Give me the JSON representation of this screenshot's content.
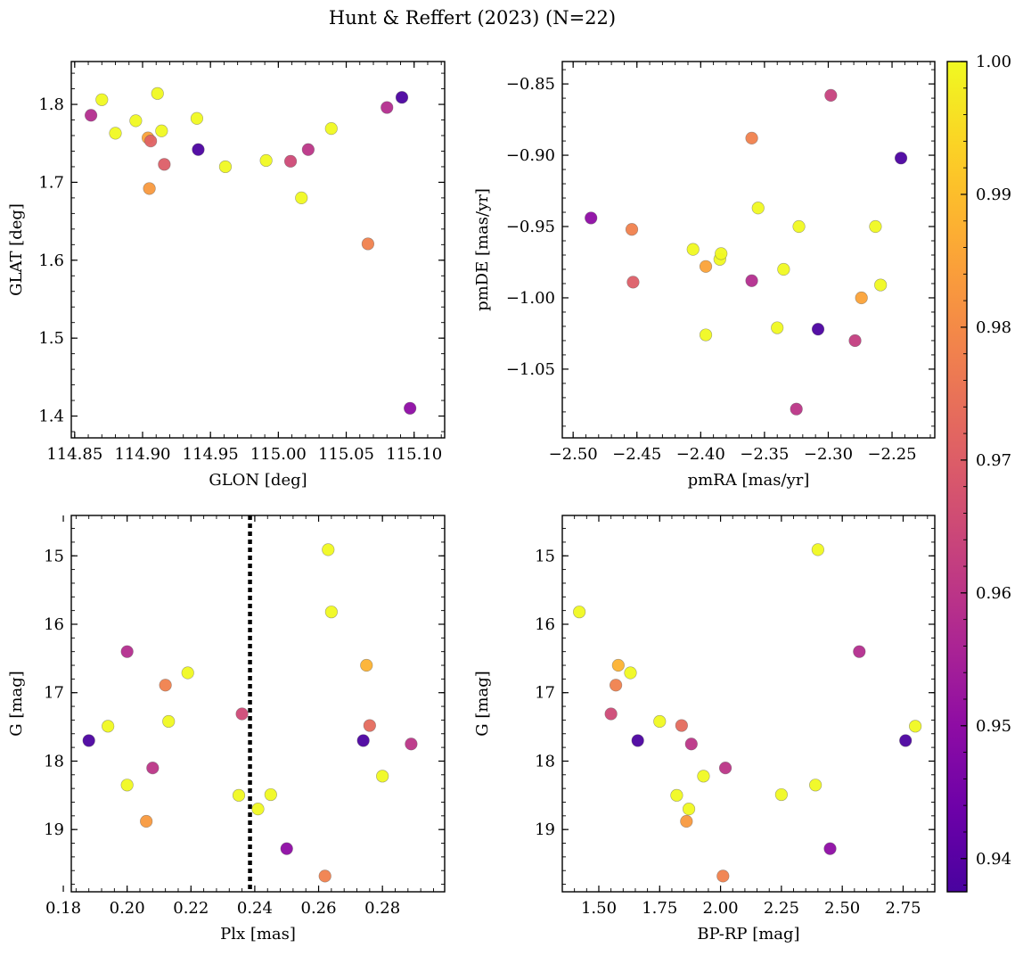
{
  "figure": {
    "title": "Hunt & Reffert (2023) (N=22)"
  },
  "colorbar": {
    "colormap": "plasma",
    "vmin": 0.9375,
    "vmax": 1.0,
    "ticks": [
      0.94,
      0.95,
      0.96,
      0.97,
      0.98,
      0.99,
      1.0
    ],
    "tick_labels": [
      "0.94",
      "0.95",
      "0.96",
      "0.97",
      "0.98",
      "0.99",
      "1.00"
    ]
  },
  "chart_data": [
    {
      "type": "scatter",
      "id": "glon-glat",
      "title": "",
      "xlabel": "GLON [deg]",
      "ylabel": "GLAT [deg]",
      "xlim": [
        114.8475,
        115.1225
      ],
      "ylim": [
        1.372,
        1.855
      ],
      "y_inverted": false,
      "xticks": [
        114.85,
        114.9,
        114.95,
        115.0,
        115.05,
        115.1
      ],
      "xtick_labels": [
        "114.85",
        "114.90",
        "114.95",
        "115.00",
        "115.05",
        "115.10"
      ],
      "yticks": [
        1.4,
        1.5,
        1.6,
        1.7,
        1.8
      ],
      "ytick_labels": [
        "1.4",
        "1.5",
        "1.6",
        "1.7",
        "1.8"
      ],
      "vline": null,
      "points": [
        {
          "x": 114.862,
          "y": 1.786,
          "prob": 0.958
        },
        {
          "x": 114.87,
          "y": 1.806,
          "prob": 1.0
        },
        {
          "x": 114.88,
          "y": 1.763,
          "prob": 1.0
        },
        {
          "x": 114.895,
          "y": 1.779,
          "prob": 1.0
        },
        {
          "x": 114.904,
          "y": 1.757,
          "prob": 0.985
        },
        {
          "x": 114.906,
          "y": 1.753,
          "prob": 0.971
        },
        {
          "x": 114.905,
          "y": 1.692,
          "prob": 0.983
        },
        {
          "x": 114.911,
          "y": 1.814,
          "prob": 1.0
        },
        {
          "x": 114.914,
          "y": 1.766,
          "prob": 1.0
        },
        {
          "x": 114.916,
          "y": 1.723,
          "prob": 0.97
        },
        {
          "x": 114.94,
          "y": 1.782,
          "prob": 1.0
        },
        {
          "x": 114.941,
          "y": 1.742,
          "prob": 0.938
        },
        {
          "x": 114.961,
          "y": 1.72,
          "prob": 1.0
        },
        {
          "x": 114.991,
          "y": 1.728,
          "prob": 1.0
        },
        {
          "x": 115.009,
          "y": 1.727,
          "prob": 0.965
        },
        {
          "x": 115.017,
          "y": 1.68,
          "prob": 1.0
        },
        {
          "x": 115.022,
          "y": 1.742,
          "prob": 0.96
        },
        {
          "x": 115.039,
          "y": 1.769,
          "prob": 1.0
        },
        {
          "x": 115.066,
          "y": 1.621,
          "prob": 0.978
        },
        {
          "x": 115.08,
          "y": 1.796,
          "prob": 0.958
        },
        {
          "x": 115.091,
          "y": 1.809,
          "prob": 0.938
        },
        {
          "x": 115.097,
          "y": 1.41,
          "prob": 0.95
        }
      ]
    },
    {
      "type": "scatter",
      "id": "pmra-pmde",
      "title": "",
      "xlabel": "pmRA [mas/yr]",
      "ylabel": "pmDE [mas/yr]",
      "xlim": [
        -2.5085,
        -2.2165
      ],
      "ylim": [
        -1.0982,
        -0.8343
      ],
      "y_inverted": false,
      "xticks": [
        -2.5,
        -2.45,
        -2.4,
        -2.35,
        -2.3,
        -2.25
      ],
      "xtick_labels": [
        "−2.50",
        "−2.45",
        "−2.40",
        "−2.35",
        "−2.30",
        "−2.25"
      ],
      "yticks": [
        -1.05,
        -1.0,
        -0.95,
        -0.9,
        -0.85
      ],
      "ytick_labels": [
        "−1.05",
        "−1.00",
        "−0.95",
        "−0.90",
        "−0.85"
      ],
      "vline": null,
      "points": [
        {
          "x": -2.486,
          "y": -0.944,
          "prob": 0.95
        },
        {
          "x": -2.454,
          "y": -0.952,
          "prob": 0.978
        },
        {
          "x": -2.453,
          "y": -0.989,
          "prob": 0.97
        },
        {
          "x": -2.406,
          "y": -0.966,
          "prob": 1.0
        },
        {
          "x": -2.396,
          "y": -0.978,
          "prob": 0.985
        },
        {
          "x": -2.396,
          "y": -1.026,
          "prob": 1.0
        },
        {
          "x": -2.385,
          "y": -0.973,
          "prob": 1.0
        },
        {
          "x": -2.384,
          "y": -0.969,
          "prob": 1.0
        },
        {
          "x": -2.36,
          "y": -0.888,
          "prob": 0.978
        },
        {
          "x": -2.36,
          "y": -0.988,
          "prob": 0.958
        },
        {
          "x": -2.355,
          "y": -0.937,
          "prob": 1.0
        },
        {
          "x": -2.34,
          "y": -1.021,
          "prob": 1.0
        },
        {
          "x": -2.335,
          "y": -0.98,
          "prob": 1.0
        },
        {
          "x": -2.325,
          "y": -1.078,
          "prob": 0.96
        },
        {
          "x": -2.323,
          "y": -0.95,
          "prob": 1.0
        },
        {
          "x": -2.308,
          "y": -1.022,
          "prob": 0.938
        },
        {
          "x": -2.298,
          "y": -0.858,
          "prob": 0.963
        },
        {
          "x": -2.279,
          "y": -1.03,
          "prob": 0.962
        },
        {
          "x": -2.274,
          "y": -1.0,
          "prob": 0.985
        },
        {
          "x": -2.263,
          "y": -0.95,
          "prob": 1.0
        },
        {
          "x": -2.259,
          "y": -0.991,
          "prob": 1.0
        },
        {
          "x": -2.243,
          "y": -0.902,
          "prob": 0.938
        }
      ]
    },
    {
      "type": "scatter",
      "id": "plx-g",
      "title": "",
      "xlabel": "Plx [mas]",
      "ylabel": "G [mag]",
      "xlim": [
        0.1825,
        0.2995
      ],
      "ylim": [
        19.91,
        14.41
      ],
      "y_inverted": true,
      "xticks": [
        0.18,
        0.2,
        0.22,
        0.24,
        0.26,
        0.28
      ],
      "xtick_labels": [
        "0.18",
        "0.20",
        "0.22",
        "0.24",
        "0.26",
        "0.28"
      ],
      "yticks": [
        15,
        16,
        17,
        18,
        19
      ],
      "ytick_labels": [
        "15",
        "16",
        "17",
        "18",
        "19"
      ],
      "vline": {
        "x": 0.2385,
        "style": "dotted"
      },
      "points": [
        {
          "x": 0.188,
          "y": 17.7,
          "prob": 0.938
        },
        {
          "x": 0.194,
          "y": 17.49,
          "prob": 1.0
        },
        {
          "x": 0.2,
          "y": 16.4,
          "prob": 0.958
        },
        {
          "x": 0.2,
          "y": 18.35,
          "prob": 1.0
        },
        {
          "x": 0.206,
          "y": 18.88,
          "prob": 0.983
        },
        {
          "x": 0.208,
          "y": 18.1,
          "prob": 0.96
        },
        {
          "x": 0.212,
          "y": 16.89,
          "prob": 0.978
        },
        {
          "x": 0.213,
          "y": 17.42,
          "prob": 1.0
        },
        {
          "x": 0.219,
          "y": 16.71,
          "prob": 1.0
        },
        {
          "x": 0.235,
          "y": 18.5,
          "prob": 1.0
        },
        {
          "x": 0.236,
          "y": 17.31,
          "prob": 0.965
        },
        {
          "x": 0.241,
          "y": 18.7,
          "prob": 1.0
        },
        {
          "x": 0.245,
          "y": 18.49,
          "prob": 1.0
        },
        {
          "x": 0.25,
          "y": 19.28,
          "prob": 0.95
        },
        {
          "x": 0.262,
          "y": 19.68,
          "prob": 0.978
        },
        {
          "x": 0.263,
          "y": 14.91,
          "prob": 1.0
        },
        {
          "x": 0.264,
          "y": 15.82,
          "prob": 1.0
        },
        {
          "x": 0.274,
          "y": 17.7,
          "prob": 0.938
        },
        {
          "x": 0.275,
          "y": 16.6,
          "prob": 0.988
        },
        {
          "x": 0.276,
          "y": 17.48,
          "prob": 0.973
        },
        {
          "x": 0.28,
          "y": 18.22,
          "prob": 1.0
        },
        {
          "x": 0.289,
          "y": 17.75,
          "prob": 0.96
        }
      ]
    },
    {
      "type": "scatter",
      "id": "bprp-g",
      "title": "",
      "xlabel": "BP-RP [mag]",
      "ylabel": "G [mag]",
      "xlim": [
        1.35,
        2.88
      ],
      "ylim": [
        19.91,
        14.41
      ],
      "y_inverted": true,
      "xticks": [
        1.5,
        1.75,
        2.0,
        2.25,
        2.5,
        2.75
      ],
      "xtick_labels": [
        "1.50",
        "1.75",
        "2.00",
        "2.25",
        "2.50",
        "2.75"
      ],
      "yticks": [
        15,
        16,
        17,
        18,
        19
      ],
      "ytick_labels": [
        "15",
        "16",
        "17",
        "18",
        "19"
      ],
      "vline": null,
      "points": [
        {
          "x": 1.42,
          "y": 15.82,
          "prob": 1.0
        },
        {
          "x": 1.55,
          "y": 17.31,
          "prob": 0.965
        },
        {
          "x": 1.57,
          "y": 16.89,
          "prob": 0.978
        },
        {
          "x": 1.58,
          "y": 16.6,
          "prob": 0.988
        },
        {
          "x": 1.63,
          "y": 16.71,
          "prob": 1.0
        },
        {
          "x": 1.66,
          "y": 17.7,
          "prob": 0.938
        },
        {
          "x": 1.75,
          "y": 17.42,
          "prob": 1.0
        },
        {
          "x": 1.82,
          "y": 18.5,
          "prob": 1.0
        },
        {
          "x": 1.84,
          "y": 17.48,
          "prob": 0.973
        },
        {
          "x": 1.86,
          "y": 18.88,
          "prob": 0.983
        },
        {
          "x": 1.87,
          "y": 18.7,
          "prob": 1.0
        },
        {
          "x": 1.88,
          "y": 17.75,
          "prob": 0.96
        },
        {
          "x": 1.93,
          "y": 18.22,
          "prob": 1.0
        },
        {
          "x": 2.01,
          "y": 19.68,
          "prob": 0.978
        },
        {
          "x": 2.02,
          "y": 18.1,
          "prob": 0.96
        },
        {
          "x": 2.25,
          "y": 18.49,
          "prob": 1.0
        },
        {
          "x": 2.39,
          "y": 18.35,
          "prob": 1.0
        },
        {
          "x": 2.4,
          "y": 14.91,
          "prob": 1.0
        },
        {
          "x": 2.45,
          "y": 19.28,
          "prob": 0.95
        },
        {
          "x": 2.57,
          "y": 16.4,
          "prob": 0.958
        },
        {
          "x": 2.76,
          "y": 17.7,
          "prob": 0.938
        },
        {
          "x": 2.8,
          "y": 17.49,
          "prob": 1.0
        }
      ]
    }
  ]
}
